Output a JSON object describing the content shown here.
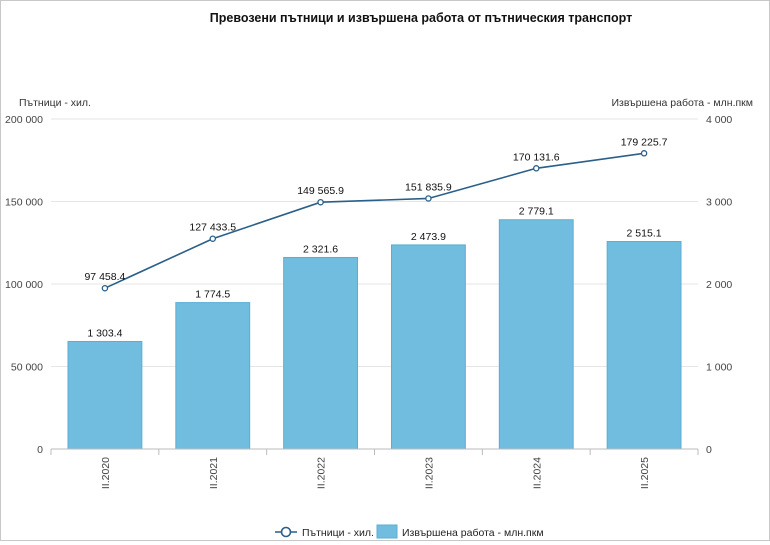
{
  "chart_data": {
    "type": "bar",
    "title": "Превозени пътници и извършена работа от пътническия транспорт",
    "categories": [
      "II.2020",
      "II.2021",
      "II.2022",
      "II.2023",
      "II.2024",
      "II.2025"
    ],
    "y_left": {
      "label": "Пътници - хил.",
      "ylim": [
        0,
        200000
      ],
      "ticks": [
        0,
        50000,
        100000,
        150000,
        200000
      ],
      "tick_labels": [
        "0",
        "50 000",
        "100 000",
        "150 000",
        "200 000"
      ]
    },
    "y_right": {
      "label": "Извършена работа - млн.пкм",
      "ylim": [
        0,
        4000
      ],
      "ticks": [
        0,
        1000,
        2000,
        3000,
        4000
      ],
      "tick_labels": [
        "0",
        "1 000",
        "2 000",
        "3 000",
        "4 000"
      ]
    },
    "series": [
      {
        "name": "Пътници - хил.",
        "type": "line",
        "axis": "left",
        "values": [
          97458.4,
          127433.5,
          149565.9,
          151835.9,
          170131.6,
          179225.7
        ],
        "labels": [
          "97 458.4",
          "127 433.5",
          "149 565.9",
          "151 835.9",
          "170 131.6",
          "179 225.7"
        ]
      },
      {
        "name": "Извършена работа - млн.пкм",
        "type": "bar",
        "axis": "right",
        "values": [
          1303.4,
          1774.5,
          2321.6,
          2473.9,
          2779.1,
          2515.1
        ],
        "labels": [
          "1 303.4",
          "1 774.5",
          "2 321.6",
          "2 473.9",
          "2 779.1",
          "2 515.1"
        ]
      }
    ],
    "grid": true,
    "legend_position": "bottom-center",
    "colors": {
      "bar": "#71bddf",
      "bar_stroke": "#5aaed6",
      "line": "#2a5f8a",
      "grid": "#e6e6e6"
    }
  }
}
